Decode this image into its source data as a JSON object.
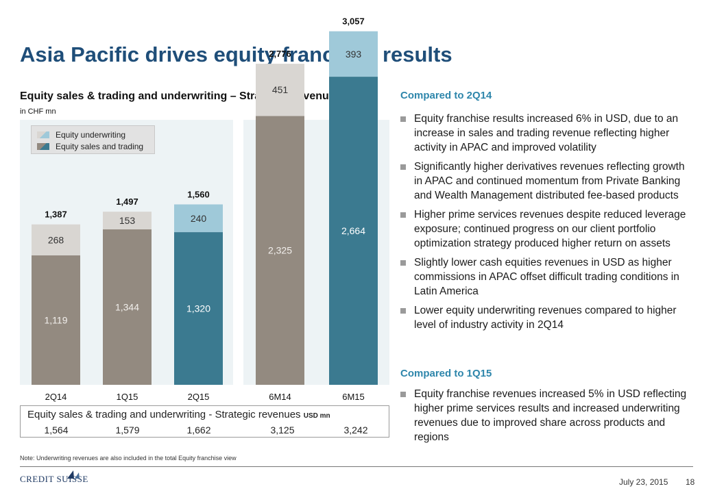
{
  "slide": {
    "title": "Asia Pacific drives equity franchise results",
    "chart_heading": "Equity sales & trading and underwriting – Strategic Revenues",
    "chart_unit": "in CHF mn"
  },
  "chart_data": {
    "type": "bar",
    "stacked": true,
    "categories": [
      "2Q14",
      "1Q15",
      "2Q15",
      "6M14",
      "6M15"
    ],
    "groups": [
      [
        "2Q14",
        "1Q15",
        "2Q15"
      ],
      [
        "6M14",
        "6M15"
      ]
    ],
    "series": [
      {
        "name": "Equity sales and trading",
        "values": [
          1119,
          1344,
          1320,
          2325,
          2664
        ],
        "labels": [
          "1,119",
          "1,344",
          "1,320",
          "2,325",
          "2,664"
        ]
      },
      {
        "name": "Equity underwriting",
        "values": [
          268,
          153,
          240,
          451,
          393
        ],
        "labels": [
          "268",
          "153",
          "240",
          "451",
          "393"
        ]
      }
    ],
    "totals": [
      1387,
      1497,
      1560,
      2776,
      3057
    ],
    "total_labels": [
      "1,387",
      "1,497",
      "1,560",
      "2,776",
      "3,057"
    ],
    "highlighted_categories": [
      "2Q15",
      "6M15"
    ],
    "colors": {
      "sales_trading": "#938a80",
      "underwriting": "#d9d6d2",
      "sales_trading_highlight": "#3b7a90",
      "underwriting_highlight": "#9fc9d9",
      "panel_bg": "#edf3f5"
    },
    "legend": [
      "Equity underwriting",
      "Equity sales and trading"
    ],
    "legend_position": "top-left",
    "unit": "CHF mn"
  },
  "usd_table": {
    "title": "Equity sales & trading and underwriting - Strategic revenues",
    "unit": "USD mn",
    "values": [
      "1,564",
      "1,579",
      "1,662",
      "3,125",
      "3,242"
    ]
  },
  "commentary": {
    "section1_heading": "Compared to 2Q14",
    "section1_bullets": [
      "Equity franchise results increased 6% in USD, due to an increase in sales and trading revenue reflecting higher activity in APAC and improved volatility",
      "Significantly higher derivatives revenues reflecting growth in APAC and continued momentum from Private Banking and Wealth Management distributed fee-based products",
      "Higher prime services revenues despite reduced leverage exposure; continued progress on our client portfolio optimization strategy produced higher return on assets",
      "Slightly lower cash equities revenues in USD as higher commissions in APAC offset difficult trading conditions in Latin America",
      "Lower equity underwriting revenues compared to higher level of industry activity in 2Q14"
    ],
    "section2_heading": "Compared to 1Q15",
    "section2_bullets": [
      "Equity franchise revenues increased 5% in USD reflecting higher prime services results and increased underwriting revenues due to improved share across products and regions"
    ]
  },
  "footer": {
    "note": "Note: Underwriting revenues are also included in the total Equity franchise view",
    "logo_text": "CREDIT SUISSE",
    "date": "July 23, 2015",
    "page": "18"
  }
}
